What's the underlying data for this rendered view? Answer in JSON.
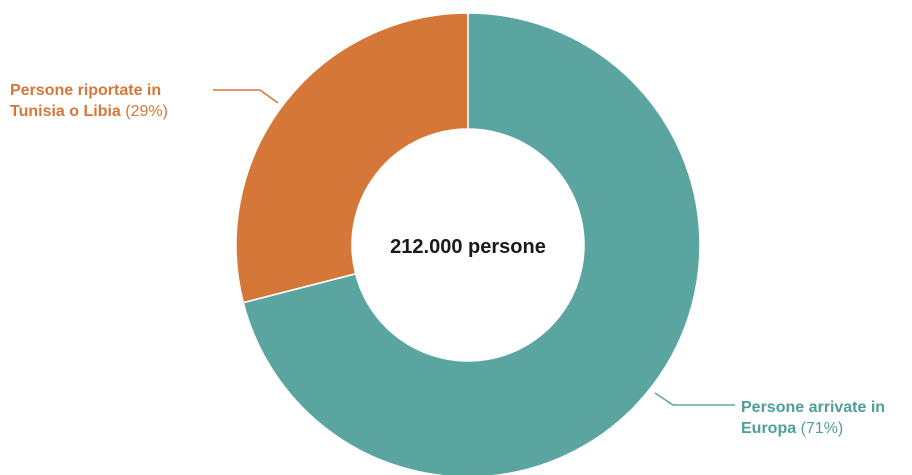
{
  "chart_data": {
    "type": "donut",
    "total_label": "212.000 persone",
    "slices": [
      {
        "label_line1": "Persone riportate in",
        "label_line2": "Tunisia o Libia",
        "pct_label": "(29%)",
        "value": 29,
        "color": "#d6773a"
      },
      {
        "label_line1": "Persone arrivate in",
        "label_line2": "Europa",
        "pct_label": "(71%)",
        "value": 71,
        "color": "#5ba5a0"
      }
    ],
    "start_angle_deg": 0,
    "direction": "counterclockwise"
  }
}
